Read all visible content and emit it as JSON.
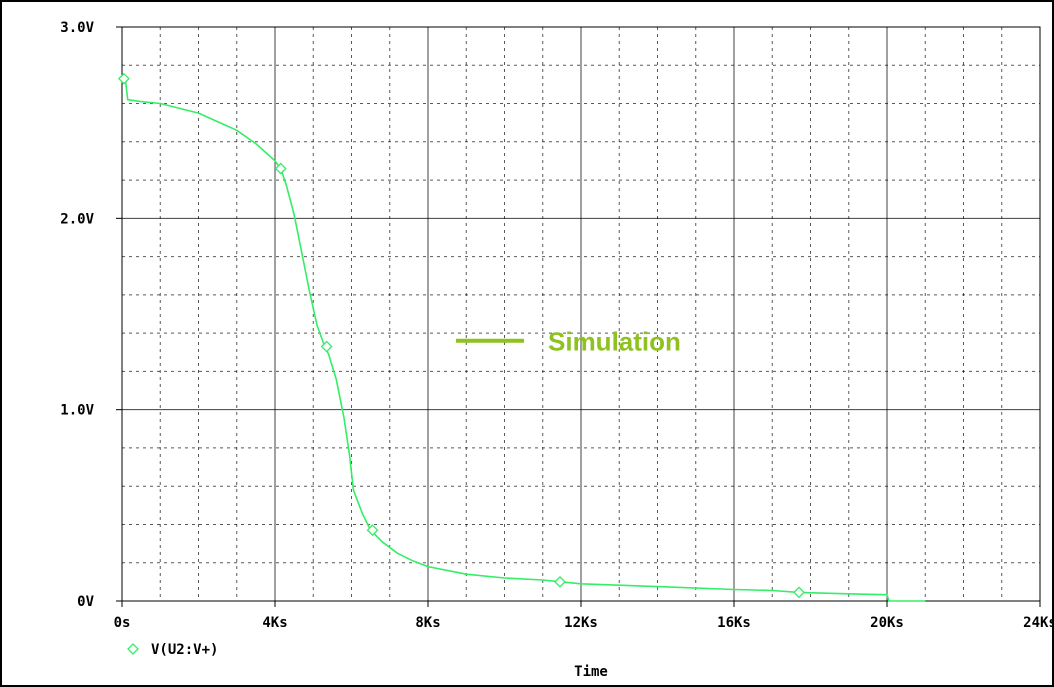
{
  "chart_data": {
    "type": "line",
    "title": "",
    "xlabel": "Time",
    "ylabel": "",
    "xlim": [
      0,
      24000
    ],
    "ylim": [
      0,
      3.0
    ],
    "x_ticks": [
      {
        "value": 0,
        "label": "0s"
      },
      {
        "value": 4000,
        "label": "4Ks"
      },
      {
        "value": 8000,
        "label": "8Ks"
      },
      {
        "value": 12000,
        "label": "12Ks"
      },
      {
        "value": 16000,
        "label": "16Ks"
      },
      {
        "value": 20000,
        "label": "20Ks"
      },
      {
        "value": 24000,
        "label": "24Ks"
      }
    ],
    "y_ticks": [
      {
        "value": 0,
        "label": "0V"
      },
      {
        "value": 1.0,
        "label": "1.0V"
      },
      {
        "value": 2.0,
        "label": "2.0V"
      },
      {
        "value": 3.0,
        "label": "3.0V"
      }
    ],
    "grid": true,
    "legend_position": "bottom-left",
    "series": [
      {
        "name": "V(U2:V+)",
        "color": "#33ee66",
        "marker": "diamond",
        "x": [
          0,
          80,
          150,
          500,
          1000,
          2000,
          3000,
          3500,
          4000,
          4150,
          4300,
          4500,
          4700,
          4900,
          5100,
          5300,
          5400,
          5600,
          5800,
          5950,
          6050,
          6200,
          6300,
          6500,
          6800,
          7200,
          7600,
          8000,
          9000,
          10000,
          11000,
          11500,
          12000,
          14000,
          16000,
          17000,
          17700,
          18500,
          19500,
          20000,
          20050,
          20500,
          21000
        ],
        "values": [
          2.74,
          2.74,
          2.62,
          2.61,
          2.6,
          2.55,
          2.46,
          2.39,
          2.3,
          2.26,
          2.17,
          2.02,
          1.82,
          1.62,
          1.44,
          1.33,
          1.29,
          1.16,
          0.96,
          0.76,
          0.58,
          0.5,
          0.45,
          0.37,
          0.31,
          0.25,
          0.21,
          0.18,
          0.14,
          0.12,
          0.11,
          0.1,
          0.09,
          0.075,
          0.06,
          0.055,
          0.045,
          0.04,
          0.035,
          0.033,
          0.0,
          0.0,
          0.0
        ],
        "marker_x": [
          50,
          4150,
          5350,
          6550,
          11450,
          17700
        ],
        "marker_values": [
          2.73,
          2.26,
          1.33,
          0.37,
          0.1,
          0.045
        ]
      }
    ],
    "annotations": [
      {
        "text": "Simulation",
        "color": "#8dc21f",
        "x": 12000,
        "y": 1.35
      }
    ]
  },
  "legend": {
    "series_label": "V(U2:V+)",
    "marker_icon": "diamond-marker-icon"
  },
  "colors": {
    "background": "#ffffff",
    "axis": "#000000",
    "grid": "#000000",
    "series": "#33ee66",
    "annotation": "#8dc21f"
  }
}
